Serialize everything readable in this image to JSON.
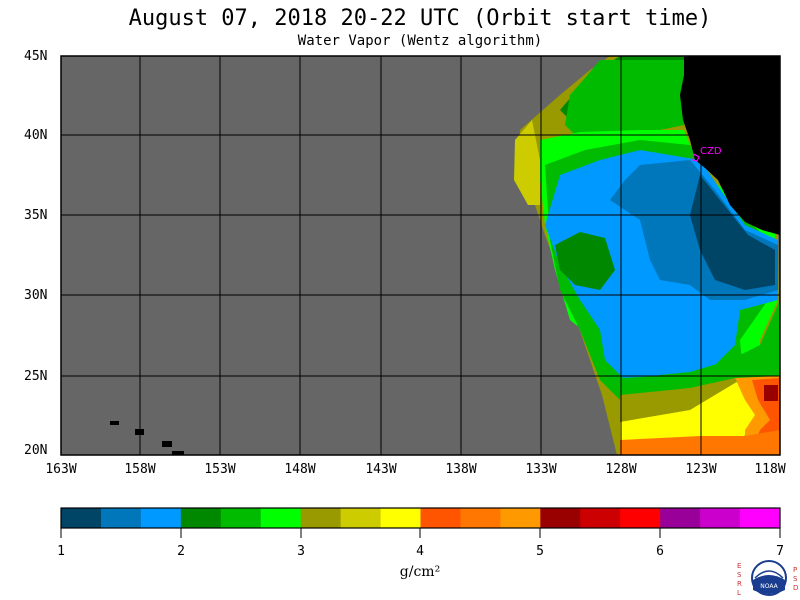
{
  "header": {
    "title": "August 07, 2018  20-22 UTC  (Orbit start time)",
    "subtitle": "Water Vapor (Wentz algorithm)"
  },
  "map": {
    "lat_labels": [
      "45N",
      "40N",
      "35N",
      "30N",
      "25N",
      "20N"
    ],
    "lon_labels": [
      "163W",
      "158W",
      "153W",
      "148W",
      "143W",
      "138W",
      "133W",
      "128W",
      "123W",
      "118W"
    ],
    "station": "CZD",
    "colors": {
      "no_data": "#666666",
      "land": "#000000",
      "grid": "#000000",
      "station": "#ff00ff"
    }
  },
  "colorbar": {
    "ticks": [
      "1",
      "2",
      "3",
      "4",
      "5",
      "6",
      "7"
    ],
    "unit": "g/cm²",
    "colors": [
      "#004466",
      "#0077bb",
      "#0099ff",
      "#008800",
      "#00bb00",
      "#00ff00",
      "#999900",
      "#cccc00",
      "#ffff00",
      "#ff5500",
      "#ff7700",
      "#ff9900",
      "#990000",
      "#cc0000",
      "#ff0000",
      "#990099",
      "#cc00cc",
      "#ff00ff"
    ]
  },
  "logo": {
    "left_text": "ESRL",
    "right_text": "PSD",
    "center_text": "NOAA"
  }
}
